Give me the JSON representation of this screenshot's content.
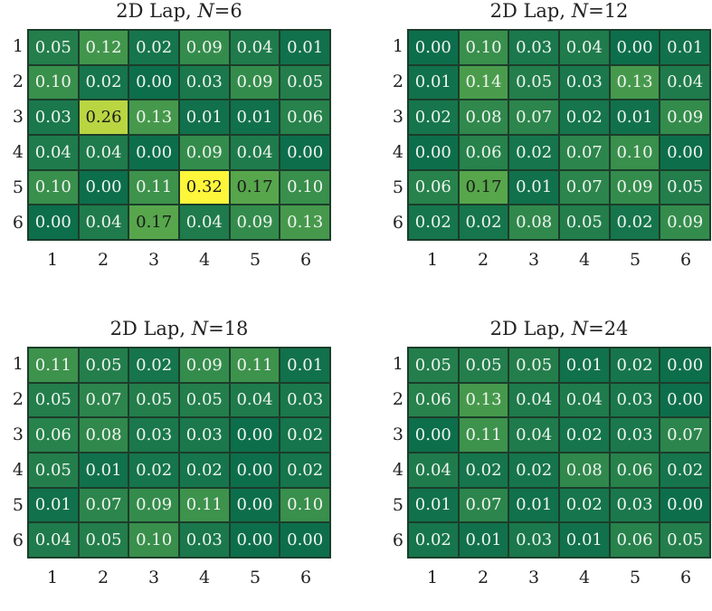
{
  "chart_data": [
    {
      "type": "heatmap",
      "title_prefix": "2D Lap, ",
      "title_var": "N",
      "title_value": "=6",
      "x_categories": [
        "1",
        "2",
        "3",
        "4",
        "5",
        "6"
      ],
      "y_categories": [
        "1",
        "2",
        "3",
        "4",
        "5",
        "6"
      ],
      "values": [
        [
          "0.05",
          "0.12",
          "0.02",
          "0.09",
          "0.04",
          "0.01"
        ],
        [
          "0.10",
          "0.02",
          "0.00",
          "0.03",
          "0.09",
          "0.05"
        ],
        [
          "0.03",
          "0.26",
          "0.13",
          "0.01",
          "0.01",
          "0.06"
        ],
        [
          "0.04",
          "0.04",
          "0.00",
          "0.09",
          "0.04",
          "0.00"
        ],
        [
          "0.10",
          "0.00",
          "0.11",
          "0.32",
          "0.17",
          "0.10"
        ],
        [
          "0.00",
          "0.04",
          "0.17",
          "0.04",
          "0.09",
          "0.13"
        ]
      ]
    },
    {
      "type": "heatmap",
      "title_prefix": "2D Lap, ",
      "title_var": "N",
      "title_value": "=12",
      "x_categories": [
        "1",
        "2",
        "3",
        "4",
        "5",
        "6"
      ],
      "y_categories": [
        "1",
        "2",
        "3",
        "4",
        "5",
        "6"
      ],
      "values": [
        [
          "0.00",
          "0.10",
          "0.03",
          "0.04",
          "0.00",
          "0.01"
        ],
        [
          "0.01",
          "0.14",
          "0.05",
          "0.03",
          "0.13",
          "0.04"
        ],
        [
          "0.02",
          "0.08",
          "0.07",
          "0.02",
          "0.01",
          "0.09"
        ],
        [
          "0.00",
          "0.06",
          "0.02",
          "0.07",
          "0.10",
          "0.00"
        ],
        [
          "0.06",
          "0.17",
          "0.01",
          "0.07",
          "0.09",
          "0.05"
        ],
        [
          "0.02",
          "0.02",
          "0.08",
          "0.05",
          "0.02",
          "0.09"
        ]
      ]
    },
    {
      "type": "heatmap",
      "title_prefix": "2D Lap, ",
      "title_var": "N",
      "title_value": "=18",
      "x_categories": [
        "1",
        "2",
        "3",
        "4",
        "5",
        "6"
      ],
      "y_categories": [
        "1",
        "2",
        "3",
        "4",
        "5",
        "6"
      ],
      "values": [
        [
          "0.11",
          "0.05",
          "0.02",
          "0.09",
          "0.11",
          "0.01"
        ],
        [
          "0.05",
          "0.07",
          "0.05",
          "0.05",
          "0.04",
          "0.03"
        ],
        [
          "0.06",
          "0.08",
          "0.03",
          "0.03",
          "0.00",
          "0.02"
        ],
        [
          "0.05",
          "0.01",
          "0.02",
          "0.02",
          "0.00",
          "0.02"
        ],
        [
          "0.01",
          "0.07",
          "0.09",
          "0.11",
          "0.00",
          "0.10"
        ],
        [
          "0.04",
          "0.05",
          "0.10",
          "0.03",
          "0.00",
          "0.00"
        ]
      ]
    },
    {
      "type": "heatmap",
      "title_prefix": "2D Lap, ",
      "title_var": "N",
      "title_value": "=24",
      "x_categories": [
        "1",
        "2",
        "3",
        "4",
        "5",
        "6"
      ],
      "y_categories": [
        "1",
        "2",
        "3",
        "4",
        "5",
        "6"
      ],
      "values": [
        [
          "0.05",
          "0.05",
          "0.05",
          "0.01",
          "0.02",
          "0.00"
        ],
        [
          "0.06",
          "0.13",
          "0.04",
          "0.04",
          "0.03",
          "0.00"
        ],
        [
          "0.00",
          "0.11",
          "0.04",
          "0.02",
          "0.03",
          "0.07"
        ],
        [
          "0.04",
          "0.02",
          "0.02",
          "0.08",
          "0.06",
          "0.02"
        ],
        [
          "0.01",
          "0.07",
          "0.01",
          "0.02",
          "0.03",
          "0.00"
        ],
        [
          "0.02",
          "0.01",
          "0.03",
          "0.01",
          "0.06",
          "0.05"
        ]
      ]
    }
  ],
  "colormap": {
    "low": "#0d6e4c",
    "mid": "#5aa84c",
    "high": "#fdf63a",
    "vmax": 0.32
  }
}
